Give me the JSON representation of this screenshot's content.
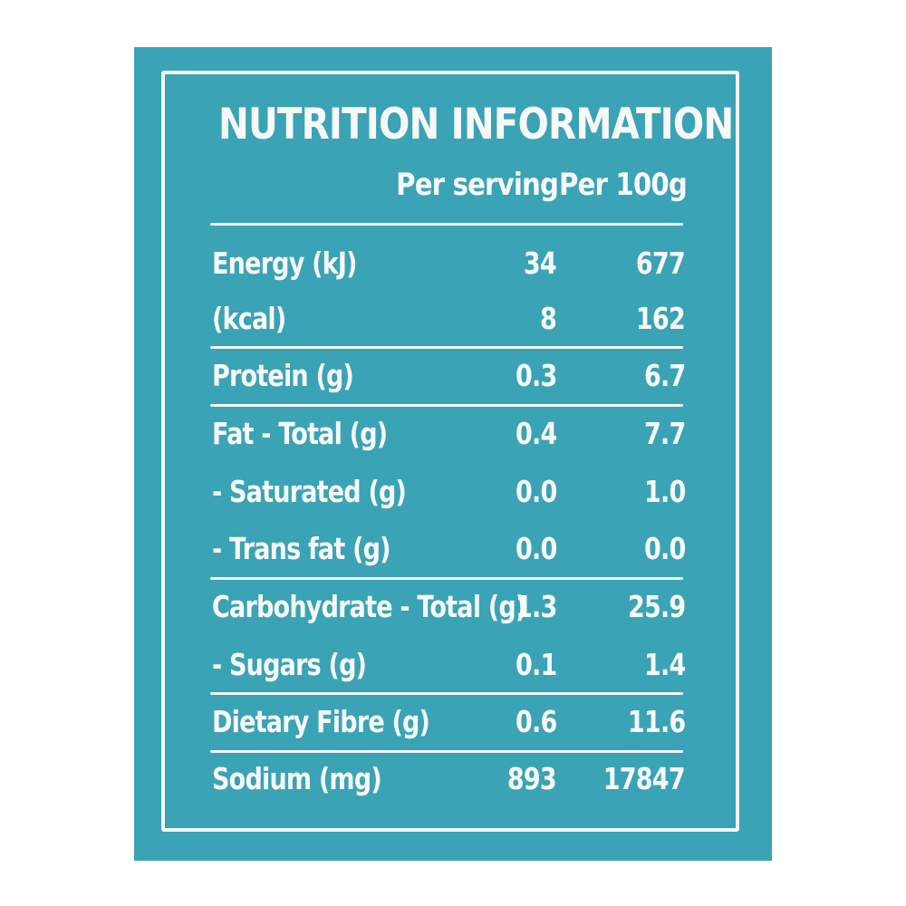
{
  "title": "NUTRITION INFORMATION",
  "columns": {
    "per_serving": "Per serving",
    "per_100g": "Per 100g"
  },
  "rows": [
    {
      "label": "Energy (kJ)",
      "per_serving": "34",
      "per_100g": "677"
    },
    {
      "label": "(kcal)",
      "per_serving": "8",
      "per_100g": "162"
    },
    {
      "label": "Protein (g)",
      "per_serving": "0.3",
      "per_100g": "6.7"
    },
    {
      "label": "Fat - Total (g)",
      "per_serving": "0.4",
      "per_100g": "7.7"
    },
    {
      "label": "- Saturated (g)",
      "per_serving": "0.0",
      "per_100g": "1.0"
    },
    {
      "label": "- Trans fat (g)",
      "per_serving": "0.0",
      "per_100g": "0.0"
    },
    {
      "label": "Carbohydrate - Total (g)",
      "per_serving": "1.3",
      "per_100g": "25.9"
    },
    {
      "label": "- Sugars (g)",
      "per_serving": "0.1",
      "per_100g": "1.4"
    },
    {
      "label": "Dietary Fibre (g)",
      "per_serving": "0.6",
      "per_100g": "11.6"
    },
    {
      "label": "Sodium (mg)",
      "per_serving": "893",
      "per_100g": "17847"
    }
  ],
  "colors": {
    "panel": "#3aa3b5",
    "text": "#f7f9f8"
  }
}
